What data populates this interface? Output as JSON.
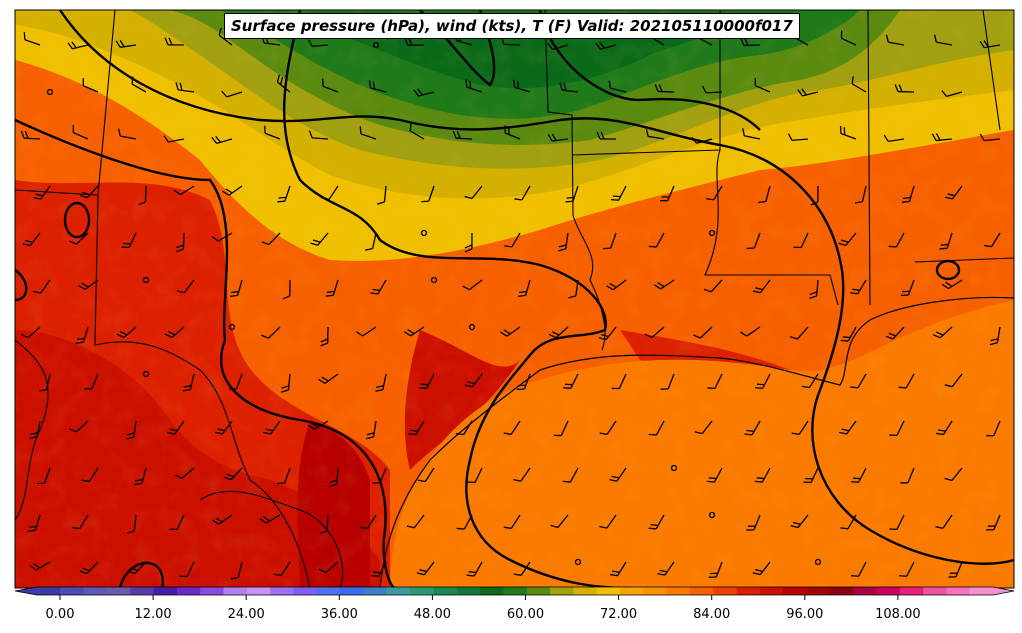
{
  "title": "Surface pressure (hPa), wind (kts), T (F) Valid: 202105110000f017",
  "colorbar": {
    "ticks": [
      "0.00",
      "12.00",
      "24.00",
      "36.00",
      "48.00",
      "60.00",
      "72.00",
      "84.00",
      "96.00",
      "108.00"
    ],
    "colors": [
      "#3a3aa8",
      "#4b4bb6",
      "#5a5ab9",
      "#6a5aa8",
      "#5a3aa8",
      "#4a1aa8",
      "#6a2ac8",
      "#8a4ae0",
      "#b080f0",
      "#c890f8",
      "#a070f0",
      "#8060f0",
      "#5070f0",
      "#3a6af0",
      "#3a80c8",
      "#3a9aa0",
      "#2a9a70",
      "#1a8a50",
      "#117a3a",
      "#0b6a1a",
      "#1f7a1a",
      "#5a8a10",
      "#a0a010",
      "#d4b000",
      "#f0c000",
      "#f5a500",
      "#f89000",
      "#fb7a00",
      "#f96000",
      "#ee4000",
      "#dd2000",
      "#cc1000",
      "#b80000",
      "#a00000",
      "#8a0010",
      "#a80040",
      "#cc0060",
      "#e8207a",
      "#f050a0",
      "#f870c0",
      "#f890d0"
    ]
  },
  "layers": {
    "temperature_field": "filled contours",
    "isobars": "black contour lines",
    "wind_barbs": "black barbs",
    "borders": "state and coast lines"
  }
}
